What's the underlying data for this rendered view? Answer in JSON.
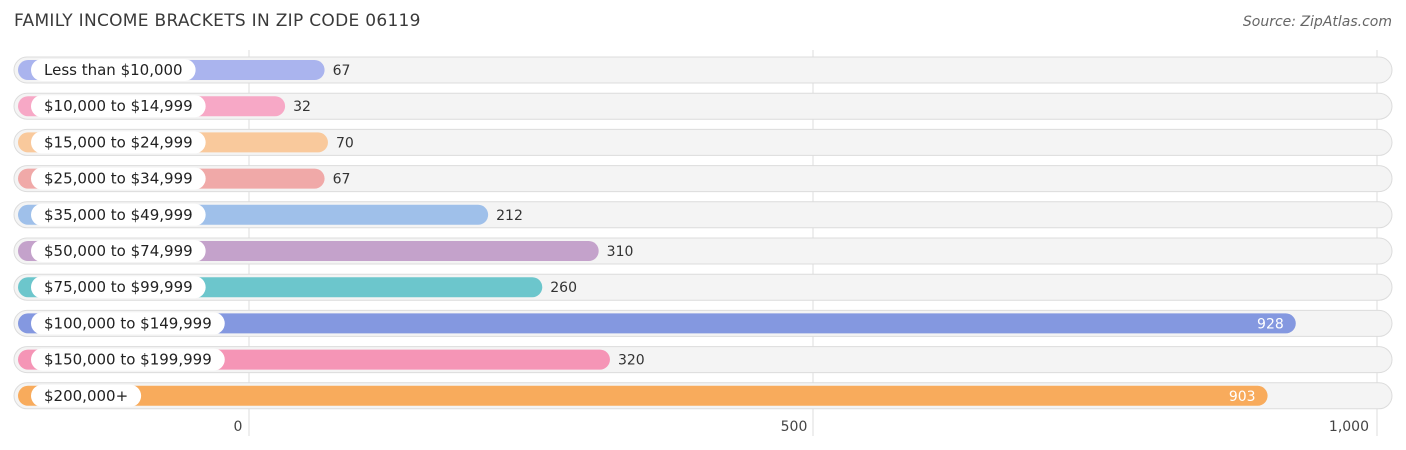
{
  "header": {
    "title": "FAMILY INCOME BRACKETS IN ZIP CODE 06119",
    "source": "Source: ZipAtlas.com"
  },
  "chart_data": {
    "type": "bar",
    "orientation": "horizontal",
    "title": "FAMILY INCOME BRACKETS IN ZIP CODE 06119",
    "categories": [
      "Less than $10,000",
      "$10,000 to $14,999",
      "$15,000 to $24,999",
      "$25,000 to $34,999",
      "$35,000 to $49,999",
      "$50,000 to $74,999",
      "$75,000 to $99,999",
      "$100,000 to $149,999",
      "$150,000 to $199,999",
      "$200,000+"
    ],
    "values": [
      67,
      32,
      70,
      67,
      212,
      310,
      260,
      928,
      320,
      903
    ],
    "value_labels": [
      "67",
      "32",
      "70",
      "67",
      "212",
      "310",
      "260",
      "928",
      "320",
      "903"
    ],
    "colors": [
      "#aab4ee",
      "#f7a8c6",
      "#f9c99c",
      "#f0a9a8",
      "#9fc0ea",
      "#c4a2cb",
      "#6cc6cc",
      "#8498e0",
      "#f595b6",
      "#f8ab5c"
    ],
    "xlim": [
      0,
      1000
    ],
    "xticks": [
      0,
      500,
      1000
    ],
    "xtick_labels": [
      "0",
      "500",
      "1,000"
    ],
    "grid": true,
    "xlabel": "",
    "ylabel": ""
  }
}
